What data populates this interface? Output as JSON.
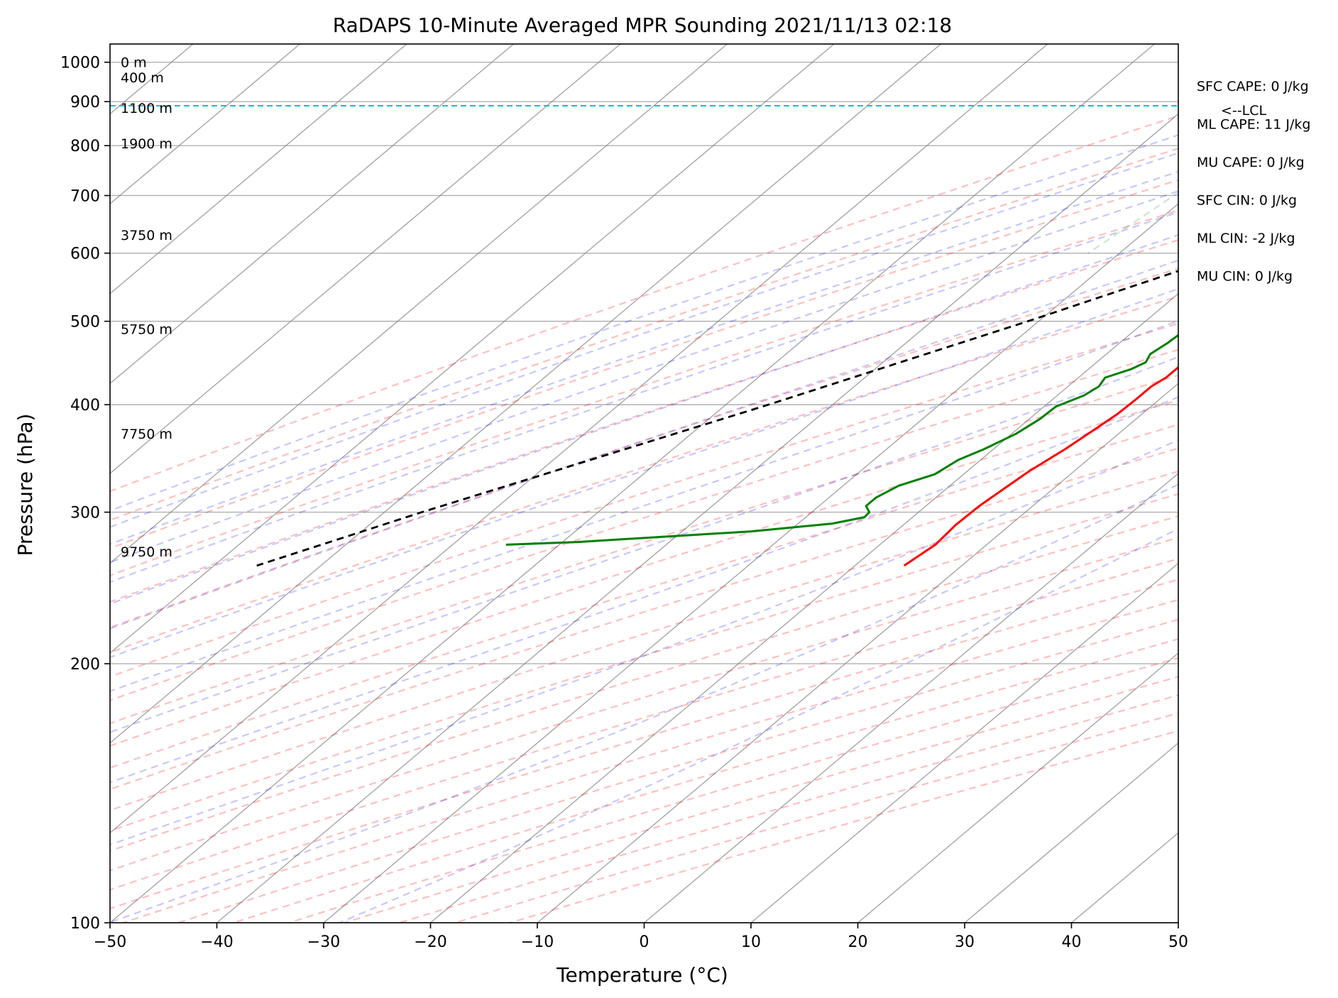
{
  "chart_data": {
    "type": "line",
    "title": "RaDAPS 10-Minute Averaged MPR Sounding 2021/11/13 02:18",
    "xlabel": "Temperature (°C)",
    "ylabel": "Pressure (hPa)",
    "xlim": [
      -50,
      50
    ],
    "ylim": [
      1050,
      100
    ],
    "y_scale": "log",
    "skew": true,
    "grid": true,
    "x_ticks": [
      -50,
      -40,
      -30,
      -20,
      -10,
      0,
      10,
      20,
      30,
      40,
      50
    ],
    "x_tick_labels": [
      "−50",
      "−40",
      "−30",
      "−20",
      "−10",
      "0",
      "10",
      "20",
      "30",
      "40",
      "50"
    ],
    "y_ticks": [
      100,
      200,
      300,
      400,
      500,
      600,
      700,
      800,
      900,
      1000
    ],
    "y_tick_labels": [
      "100",
      "200",
      "300",
      "400",
      "500",
      "600",
      "700",
      "800",
      "900",
      "1000"
    ],
    "height_labels": [
      {
        "text": "9750 m",
        "pressure": 270
      },
      {
        "text": "7750 m",
        "pressure": 370
      },
      {
        "text": "5750 m",
        "pressure": 490
      },
      {
        "text": "3750 m",
        "pressure": 630
      },
      {
        "text": "1900 m",
        "pressure": 805
      },
      {
        "text": "1100 m",
        "pressure": 885
      },
      {
        "text": "400 m",
        "pressure": 960
      },
      {
        "text": "0 m",
        "pressure": 1000
      }
    ],
    "lcl": {
      "pressure": 890,
      "label": "<--LCL",
      "color": "#17becf"
    },
    "series": [
      {
        "key": "temperature",
        "color": "#ff0000",
        "points": [
          {
            "p": 990,
            "t": 12.8
          },
          {
            "p": 985,
            "t": 13.9
          },
          {
            "p": 975,
            "t": 14.7
          },
          {
            "p": 962,
            "t": 14.9
          },
          {
            "p": 948,
            "t": 14.6
          },
          {
            "p": 930,
            "t": 14.0
          },
          {
            "p": 912,
            "t": 13.2
          },
          {
            "p": 895,
            "t": 11.6
          },
          {
            "p": 880,
            "t": 9.6
          },
          {
            "p": 866,
            "t": 7.3
          },
          {
            "p": 858,
            "t": 6.3
          },
          {
            "p": 848,
            "t": 5.9
          },
          {
            "p": 838,
            "t": 5.4
          },
          {
            "p": 826,
            "t": 5.0
          },
          {
            "p": 814,
            "t": 4.6
          },
          {
            "p": 797,
            "t": 4.0
          },
          {
            "p": 780,
            "t": 3.3
          },
          {
            "p": 760,
            "t": 2.4
          },
          {
            "p": 740,
            "t": 1.4
          },
          {
            "p": 718,
            "t": 0.2
          },
          {
            "p": 702,
            "t": -0.2
          },
          {
            "p": 688,
            "t": -0.7
          },
          {
            "p": 675,
            "t": -1.5
          },
          {
            "p": 660,
            "t": -2.3
          },
          {
            "p": 648,
            "t": -2.9
          },
          {
            "p": 630,
            "t": -3.8
          },
          {
            "p": 610,
            "t": -4.6
          },
          {
            "p": 590,
            "t": -5.4
          },
          {
            "p": 565,
            "t": -6.5
          },
          {
            "p": 540,
            "t": -7.6
          },
          {
            "p": 520,
            "t": -8.7
          },
          {
            "p": 500,
            "t": -9.5
          },
          {
            "p": 480,
            "t": -10.3
          },
          {
            "p": 460,
            "t": -11.3
          },
          {
            "p": 445,
            "t": -11.8
          },
          {
            "p": 430,
            "t": -11.8
          },
          {
            "p": 420,
            "t": -12.2
          },
          {
            "p": 405,
            "t": -12.2
          },
          {
            "p": 390,
            "t": -12.3
          },
          {
            "p": 375,
            "t": -12.7
          },
          {
            "p": 355,
            "t": -13.3
          },
          {
            "p": 335,
            "t": -14.2
          },
          {
            "p": 320,
            "t": -14.6
          },
          {
            "p": 305,
            "t": -15.0
          },
          {
            "p": 290,
            "t": -15.1
          },
          {
            "p": 275,
            "t": -14.8
          },
          {
            "p": 260,
            "t": -15.4
          }
        ]
      },
      {
        "key": "dewpoint",
        "color": "#008000",
        "points": [
          {
            "p": 993,
            "t": 5.5
          },
          {
            "p": 990,
            "t": 3.8
          },
          {
            "p": 980,
            "t": 1.6
          },
          {
            "p": 970,
            "t": 0.2
          },
          {
            "p": 955,
            "t": -1.1
          },
          {
            "p": 952,
            "t": -1.2
          },
          {
            "p": 945,
            "t": -1.6
          },
          {
            "p": 938,
            "t": -1.5
          },
          {
            "p": 918,
            "t": -0.8
          },
          {
            "p": 900,
            "t": -0.4
          },
          {
            "p": 880,
            "t": -0.1
          },
          {
            "p": 866,
            "t": 0.0
          },
          {
            "p": 848,
            "t": -0.9
          },
          {
            "p": 835,
            "t": -0.8
          },
          {
            "p": 818,
            "t": -0.1
          },
          {
            "p": 800,
            "t": 0.4
          },
          {
            "p": 790,
            "t": -0.2
          },
          {
            "p": 778,
            "t": -0.8
          },
          {
            "p": 765,
            "t": -1.3
          },
          {
            "p": 745,
            "t": -2.2
          },
          {
            "p": 728,
            "t": -1.9
          },
          {
            "p": 716,
            "t": -1.1
          },
          {
            "p": 704,
            "t": -0.9
          },
          {
            "p": 693,
            "t": -1.0
          },
          {
            "p": 676,
            "t": -2.1
          },
          {
            "p": 660,
            "t": -3.3
          },
          {
            "p": 640,
            "t": -4.4
          },
          {
            "p": 620,
            "t": -5.2
          },
          {
            "p": 600,
            "t": -6.7
          },
          {
            "p": 585,
            "t": -8.0
          },
          {
            "p": 565,
            "t": -9.8
          },
          {
            "p": 545,
            "t": -10.5
          },
          {
            "p": 525,
            "t": -11.6
          },
          {
            "p": 505,
            "t": -14.1
          },
          {
            "p": 490,
            "t": -15.3
          },
          {
            "p": 472,
            "t": -15.5
          },
          {
            "p": 458,
            "t": -15.9
          },
          {
            "p": 448,
            "t": -15.4
          },
          {
            "p": 440,
            "t": -16.0
          },
          {
            "p": 430,
            "t": -17.5
          },
          {
            "p": 420,
            "t": -17.1
          },
          {
            "p": 410,
            "t": -17.5
          },
          {
            "p": 398,
            "t": -18.9
          },
          {
            "p": 385,
            "t": -19.0
          },
          {
            "p": 370,
            "t": -19.6
          },
          {
            "p": 355,
            "t": -20.9
          },
          {
            "p": 345,
            "t": -22.1
          },
          {
            "p": 332,
            "t": -22.7
          },
          {
            "p": 322,
            "t": -24.8
          },
          {
            "p": 312,
            "t": -25.6
          },
          {
            "p": 305,
            "t": -25.6
          },
          {
            "p": 300,
            "t": -24.6
          },
          {
            "p": 296,
            "t": -24.5
          },
          {
            "p": 291,
            "t": -26.8
          },
          {
            "p": 285,
            "t": -33.5
          },
          {
            "p": 277,
            "t": -48.6
          },
          {
            "p": 275,
            "t": -55.0
          }
        ]
      },
      {
        "key": "parcel",
        "color": "#000000",
        "dashed": true,
        "points": [
          {
            "p": 993,
            "t": 12.8
          },
          {
            "p": 890,
            "t": 2.2
          },
          {
            "p": 800,
            "t": -3.2
          },
          {
            "p": 700,
            "t": -10.5
          },
          {
            "p": 600,
            "t": -19.5
          },
          {
            "p": 500,
            "t": -31.0
          },
          {
            "p": 400,
            "t": -46.0
          },
          {
            "p": 300,
            "t": -66.5
          },
          {
            "p": 260,
            "t": -76.0
          }
        ]
      }
    ],
    "annotations": [
      "SFC CAPE: 0 J/kg",
      "ML CAPE: 11 J/kg",
      "MU CAPE: 0 J/kg",
      "SFC CIN: 0 J/kg",
      "ML CIN: -2 J/kg",
      "MU CIN: 0 J/kg"
    ],
    "background_lines": {
      "dry_adiabat_color": "#ff0000",
      "moist_adiabat_color": "#0000ff",
      "mixing_ratio_color": "#008000",
      "isotherm_color": "#808080"
    }
  }
}
